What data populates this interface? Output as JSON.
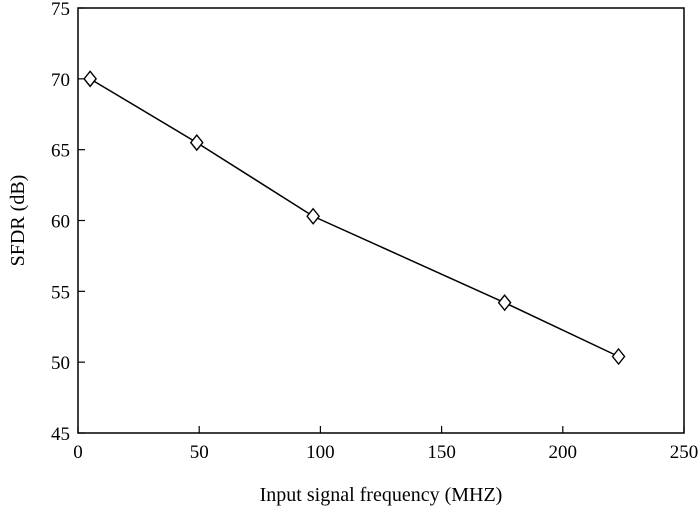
{
  "chart_data": {
    "type": "line",
    "title": "",
    "xlabel": "Input signal frequency (MHZ)",
    "ylabel": "SFDR (dB)",
    "xlim": [
      0,
      250
    ],
    "ylim": [
      45,
      75
    ],
    "xticks": [
      "0",
      "50",
      "100",
      "150",
      "200",
      "250"
    ],
    "yticks": [
      "45",
      "50",
      "55",
      "60",
      "65",
      "70",
      "75"
    ],
    "grid": false,
    "legend": "none",
    "marker": "diamond",
    "line_color": "#000000",
    "series": [
      {
        "x": [
          5,
          49,
          97,
          176,
          223
        ],
        "y": [
          70,
          65.5,
          60.3,
          54.2,
          50.4
        ]
      }
    ]
  }
}
